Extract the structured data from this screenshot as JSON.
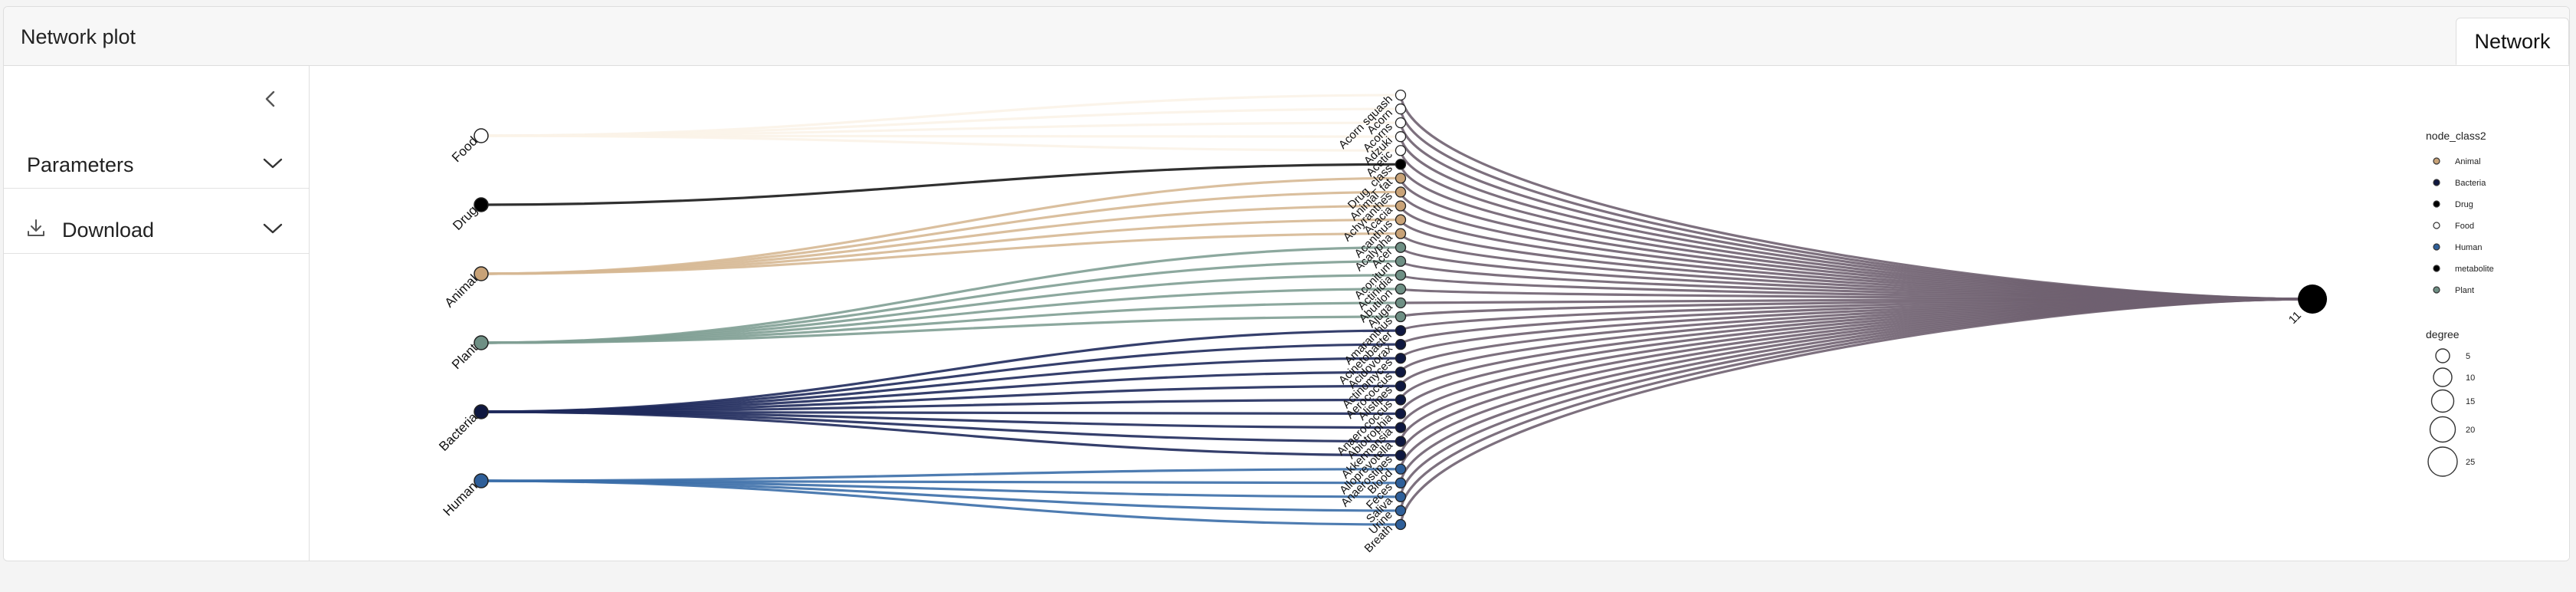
{
  "header": {
    "title": "Network plot"
  },
  "tabs": [
    {
      "label": "Network",
      "active": true
    }
  ],
  "sidebar": {
    "collapse_icon": "chevron-left-icon",
    "sections": [
      {
        "label": "Parameters",
        "icon": "chevron-down-icon"
      },
      {
        "label": "Download",
        "leading_icon": "download-icon",
        "icon": "chevron-down-icon"
      }
    ]
  },
  "network": {
    "source_nodes": [
      {
        "label": "Food",
        "color": "#fbf3e8",
        "fill": "#ffffff"
      },
      {
        "label": "Drug",
        "color": "#1a1a1a",
        "fill": "#000000"
      },
      {
        "label": "Animal",
        "color": "#d6b893",
        "fill": "#c8a277"
      },
      {
        "label": "Plant",
        "color": "#7f9e94",
        "fill": "#6e8f84"
      },
      {
        "label": "Bacteria",
        "color": "#1f2a5c",
        "fill": "#0f1840"
      },
      {
        "label": "Human",
        "color": "#3b6ea8",
        "fill": "#2f5f99"
      }
    ],
    "middle_labels": [
      "Acorn squash",
      "Acorn",
      "Acorns",
      "Adzuki",
      "Acetic",
      "Drug_class",
      "Animal_fat",
      "Achyranthes",
      "Acacia",
      "Acanthus",
      "Acalypha",
      "Acer",
      "Aconitum",
      "Actinidia",
      "Abutilon",
      "Ajuga",
      "Amaranthus",
      "Acinetobacter",
      "Acidovorax",
      "Actinomyces",
      "Aerococcus",
      "Alistipes",
      "Anaerococcus",
      "Abiotrophia",
      "Akkermansia",
      "Alloprevotella",
      "Anaerostipes",
      "Blood",
      "Feces",
      "Saliva",
      "Urine",
      "Breath"
    ],
    "final_node": {
      "label": "11",
      "fill": "#000000"
    },
    "edge_color_right": "#6f6070"
  },
  "legend": {
    "node_class_title": "node_class2",
    "node_class_items": [
      {
        "label": "Animal",
        "fill": "#c8a277"
      },
      {
        "label": "Bacteria",
        "fill": "#0f1840"
      },
      {
        "label": "Drug",
        "fill": "#000000"
      },
      {
        "label": "Food",
        "fill": "#ffffff"
      },
      {
        "label": "Human",
        "fill": "#2f5f99"
      },
      {
        "label": "metabolite",
        "fill": "#000000"
      },
      {
        "label": "Plant",
        "fill": "#6e8f84"
      }
    ],
    "degree_title": "degree",
    "degree_items": [
      {
        "label": "5"
      },
      {
        "label": "10"
      },
      {
        "label": "15"
      },
      {
        "label": "20"
      },
      {
        "label": "25"
      }
    ]
  }
}
